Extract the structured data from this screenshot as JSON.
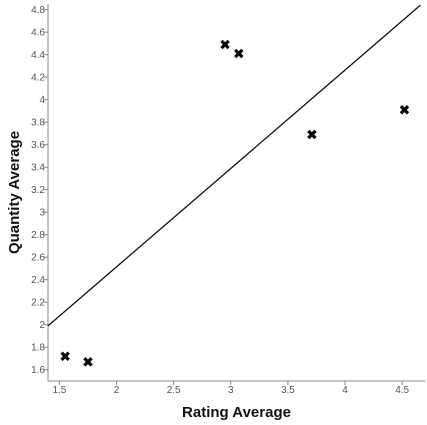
{
  "chart_data": {
    "type": "scatter",
    "title": "",
    "xlabel": "Rating Average",
    "ylabel": "Quantity Average",
    "xlim": [
      1.4,
      4.7
    ],
    "ylim": [
      1.5,
      4.85
    ],
    "x_ticks": [
      1.5,
      2,
      2.5,
      3,
      3.5,
      4,
      4.5
    ],
    "x_tick_labels": [
      "1.5",
      "2",
      "2.5",
      "3",
      "3.5",
      "4",
      "4.5"
    ],
    "y_ticks": [
      1.6,
      1.8,
      2,
      2.2,
      2.4,
      2.6,
      2.8,
      3,
      3.2,
      3.4,
      3.6,
      3.8,
      4,
      4.2,
      4.4,
      4.6,
      4.8
    ],
    "y_tick_labels": [
      "1.6",
      "1.8",
      "2",
      "2.2",
      "2.4",
      "2.6",
      "2.8",
      "3",
      "3.2",
      "3.4",
      "3.6",
      "3.8",
      "4",
      "4.2",
      "4.4",
      "4.6",
      "4.8"
    ],
    "grid": false,
    "marker": "x",
    "points": [
      {
        "x": 1.55,
        "y": 1.72
      },
      {
        "x": 1.75,
        "y": 1.67
      },
      {
        "x": 2.95,
        "y": 4.49
      },
      {
        "x": 3.07,
        "y": 4.41
      },
      {
        "x": 3.71,
        "y": 3.69
      },
      {
        "x": 4.52,
        "y": 3.91
      }
    ],
    "trendline": {
      "x": [
        1.4,
        4.66
      ],
      "y": [
        1.99,
        4.84
      ]
    },
    "colors": {
      "points": "#000000",
      "trendline": "#111111",
      "axis": "#888888"
    }
  }
}
